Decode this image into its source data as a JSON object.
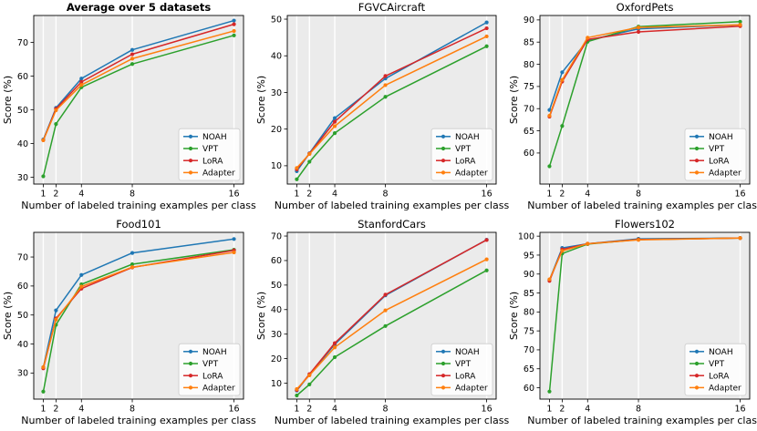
{
  "figure": {
    "xlabel": "Number of labeled training examples per class",
    "ylabel": "Score (%)"
  },
  "chart_data": [
    {
      "type": "line",
      "title": "Average over 5 datasets",
      "title_bold": true,
      "x": [
        1,
        2,
        4,
        8,
        16
      ],
      "xticks": [
        "1",
        "2",
        "4",
        "8",
        "16"
      ],
      "xlim": [
        0.25,
        16.75
      ],
      "ylim": [
        28,
        78
      ],
      "yticks": [
        30,
        40,
        50,
        60,
        70
      ],
      "xlabel": "Number of labeled training examples per class",
      "ylabel": "Score (%)",
      "legend": "lower-right",
      "series": [
        {
          "name": "NOAH",
          "color": "#1f77b4",
          "values": [
            41.2,
            50.6,
            59.3,
            67.8,
            76.5
          ]
        },
        {
          "name": "VPT",
          "color": "#2ca02c",
          "values": [
            30.3,
            45.8,
            56.7,
            63.6,
            72.1
          ]
        },
        {
          "name": "LoRA",
          "color": "#d62728",
          "values": [
            41.0,
            50.3,
            58.3,
            66.5,
            75.4
          ]
        },
        {
          "name": "Adapter",
          "color": "#ff7f0e",
          "values": [
            41.0,
            49.9,
            57.4,
            65.2,
            73.4
          ]
        }
      ]
    },
    {
      "type": "line",
      "title": "FGVCAircraft",
      "title_bold": false,
      "x": [
        1,
        2,
        4,
        8,
        16
      ],
      "xticks": [
        "1",
        "2",
        "4",
        "8",
        "16"
      ],
      "xlim": [
        0.25,
        16.75
      ],
      "ylim": [
        5,
        51
      ],
      "yticks": [
        10,
        20,
        30,
        40,
        50
      ],
      "xlabel": "Number of labeled training examples per class",
      "ylabel": "Score (%)",
      "legend": "lower-right",
      "series": [
        {
          "name": "NOAH",
          "color": "#1f77b4",
          "values": [
            8.5,
            13.4,
            23.0,
            33.8,
            49.1
          ]
        },
        {
          "name": "VPT",
          "color": "#2ca02c",
          "values": [
            6.3,
            11.1,
            18.9,
            28.8,
            42.6
          ]
        },
        {
          "name": "LoRA",
          "color": "#d62728",
          "values": [
            9.0,
            13.3,
            22.0,
            34.5,
            47.5
          ]
        },
        {
          "name": "Adapter",
          "color": "#ff7f0e",
          "values": [
            9.4,
            13.2,
            20.8,
            32.0,
            45.3
          ]
        }
      ]
    },
    {
      "type": "line",
      "title": "OxfordPets",
      "title_bold": false,
      "x": [
        1,
        2,
        4,
        8,
        16
      ],
      "xticks": [
        "1",
        "2",
        "4",
        "8",
        "16"
      ],
      "xlim": [
        0.25,
        16.75
      ],
      "ylim": [
        53,
        91
      ],
      "yticks": [
        60,
        65,
        70,
        75,
        80,
        85,
        90
      ],
      "xlabel": "Number of labeled training examples per class",
      "ylabel": "Score (%)",
      "legend": "lower-right",
      "series": [
        {
          "name": "NOAH",
          "color": "#1f77b4",
          "values": [
            69.7,
            78.2,
            85.4,
            88.0,
            88.9
          ]
        },
        {
          "name": "VPT",
          "color": "#2ca02c",
          "values": [
            57.0,
            66.1,
            85.1,
            88.5,
            89.6
          ]
        },
        {
          "name": "LoRA",
          "color": "#d62728",
          "values": [
            68.2,
            76.1,
            85.6,
            87.3,
            88.6
          ]
        },
        {
          "name": "Adapter",
          "color": "#ff7f0e",
          "values": [
            68.4,
            76.5,
            86.0,
            88.3,
            88.9
          ]
        }
      ]
    },
    {
      "type": "line",
      "title": "Food101",
      "title_bold": false,
      "x": [
        1,
        2,
        4,
        8,
        16
      ],
      "xticks": [
        "1",
        "2",
        "4",
        "8",
        "16"
      ],
      "xlim": [
        0.25,
        16.75
      ],
      "ylim": [
        21,
        78.5
      ],
      "yticks": [
        30,
        40,
        50,
        60,
        70
      ],
      "xlabel": "Number of labeled training examples per class",
      "ylabel": "Score (%)",
      "legend": "lower-right",
      "series": [
        {
          "name": "NOAH",
          "color": "#1f77b4",
          "values": [
            32.0,
            51.6,
            63.8,
            71.4,
            76.2
          ]
        },
        {
          "name": "VPT",
          "color": "#2ca02c",
          "values": [
            23.6,
            46.6,
            60.6,
            67.5,
            72.5
          ]
        },
        {
          "name": "LoRA",
          "color": "#d62728",
          "values": [
            31.6,
            48.8,
            59.1,
            66.4,
            72.3
          ]
        },
        {
          "name": "Adapter",
          "color": "#ff7f0e",
          "values": [
            32.0,
            48.4,
            59.8,
            66.5,
            71.6
          ]
        }
      ]
    },
    {
      "type": "line",
      "title": "StanfordCars",
      "title_bold": false,
      "x": [
        1,
        2,
        4,
        8,
        16
      ],
      "xticks": [
        "1",
        "2",
        "4",
        "8",
        "16"
      ],
      "xlim": [
        0.25,
        16.75
      ],
      "ylim": [
        3.5,
        71.5
      ],
      "yticks": [
        10,
        20,
        30,
        40,
        50,
        60,
        70
      ],
      "xlabel": "Number of labeled training examples per class",
      "ylabel": "Score (%)",
      "legend": "lower-right",
      "series": [
        {
          "name": "NOAH",
          "color": "#1f77b4",
          "values": [
            7.0,
            13.5,
            25.8,
            45.8,
            68.5
          ]
        },
        {
          "name": "VPT",
          "color": "#2ca02c",
          "values": [
            5.0,
            9.5,
            20.6,
            33.3,
            56.0
          ]
        },
        {
          "name": "LoRA",
          "color": "#d62728",
          "values": [
            7.2,
            13.7,
            26.3,
            46.1,
            68.4
          ]
        },
        {
          "name": "Adapter",
          "color": "#ff7f0e",
          "values": [
            7.6,
            13.2,
            24.6,
            39.7,
            60.5
          ]
        }
      ]
    },
    {
      "type": "line",
      "title": "Flowers102",
      "title_bold": false,
      "x": [
        1,
        2,
        4,
        8,
        16
      ],
      "xticks": [
        "1",
        "2",
        "4",
        "8",
        "16"
      ],
      "xlim": [
        0.25,
        16.75
      ],
      "ylim": [
        57,
        101
      ],
      "yticks": [
        60,
        65,
        70,
        75,
        80,
        85,
        90,
        95,
        100
      ],
      "xlabel": "Number of labeled training examples per class",
      "ylabel": "Score (%)",
      "legend": "lower-right",
      "series": [
        {
          "name": "NOAH",
          "color": "#1f77b4",
          "values": [
            88.5,
            96.9,
            98.0,
            99.3,
            99.5
          ]
        },
        {
          "name": "VPT",
          "color": "#2ca02c",
          "values": [
            59.0,
            95.4,
            97.9,
            99.1,
            99.5
          ]
        },
        {
          "name": "LoRA",
          "color": "#d62728",
          "values": [
            88.2,
            96.5,
            98.0,
            99.1,
            99.5
          ]
        },
        {
          "name": "Adapter",
          "color": "#ff7f0e",
          "values": [
            88.6,
            96.1,
            98.0,
            99.0,
            99.5
          ]
        }
      ]
    }
  ]
}
